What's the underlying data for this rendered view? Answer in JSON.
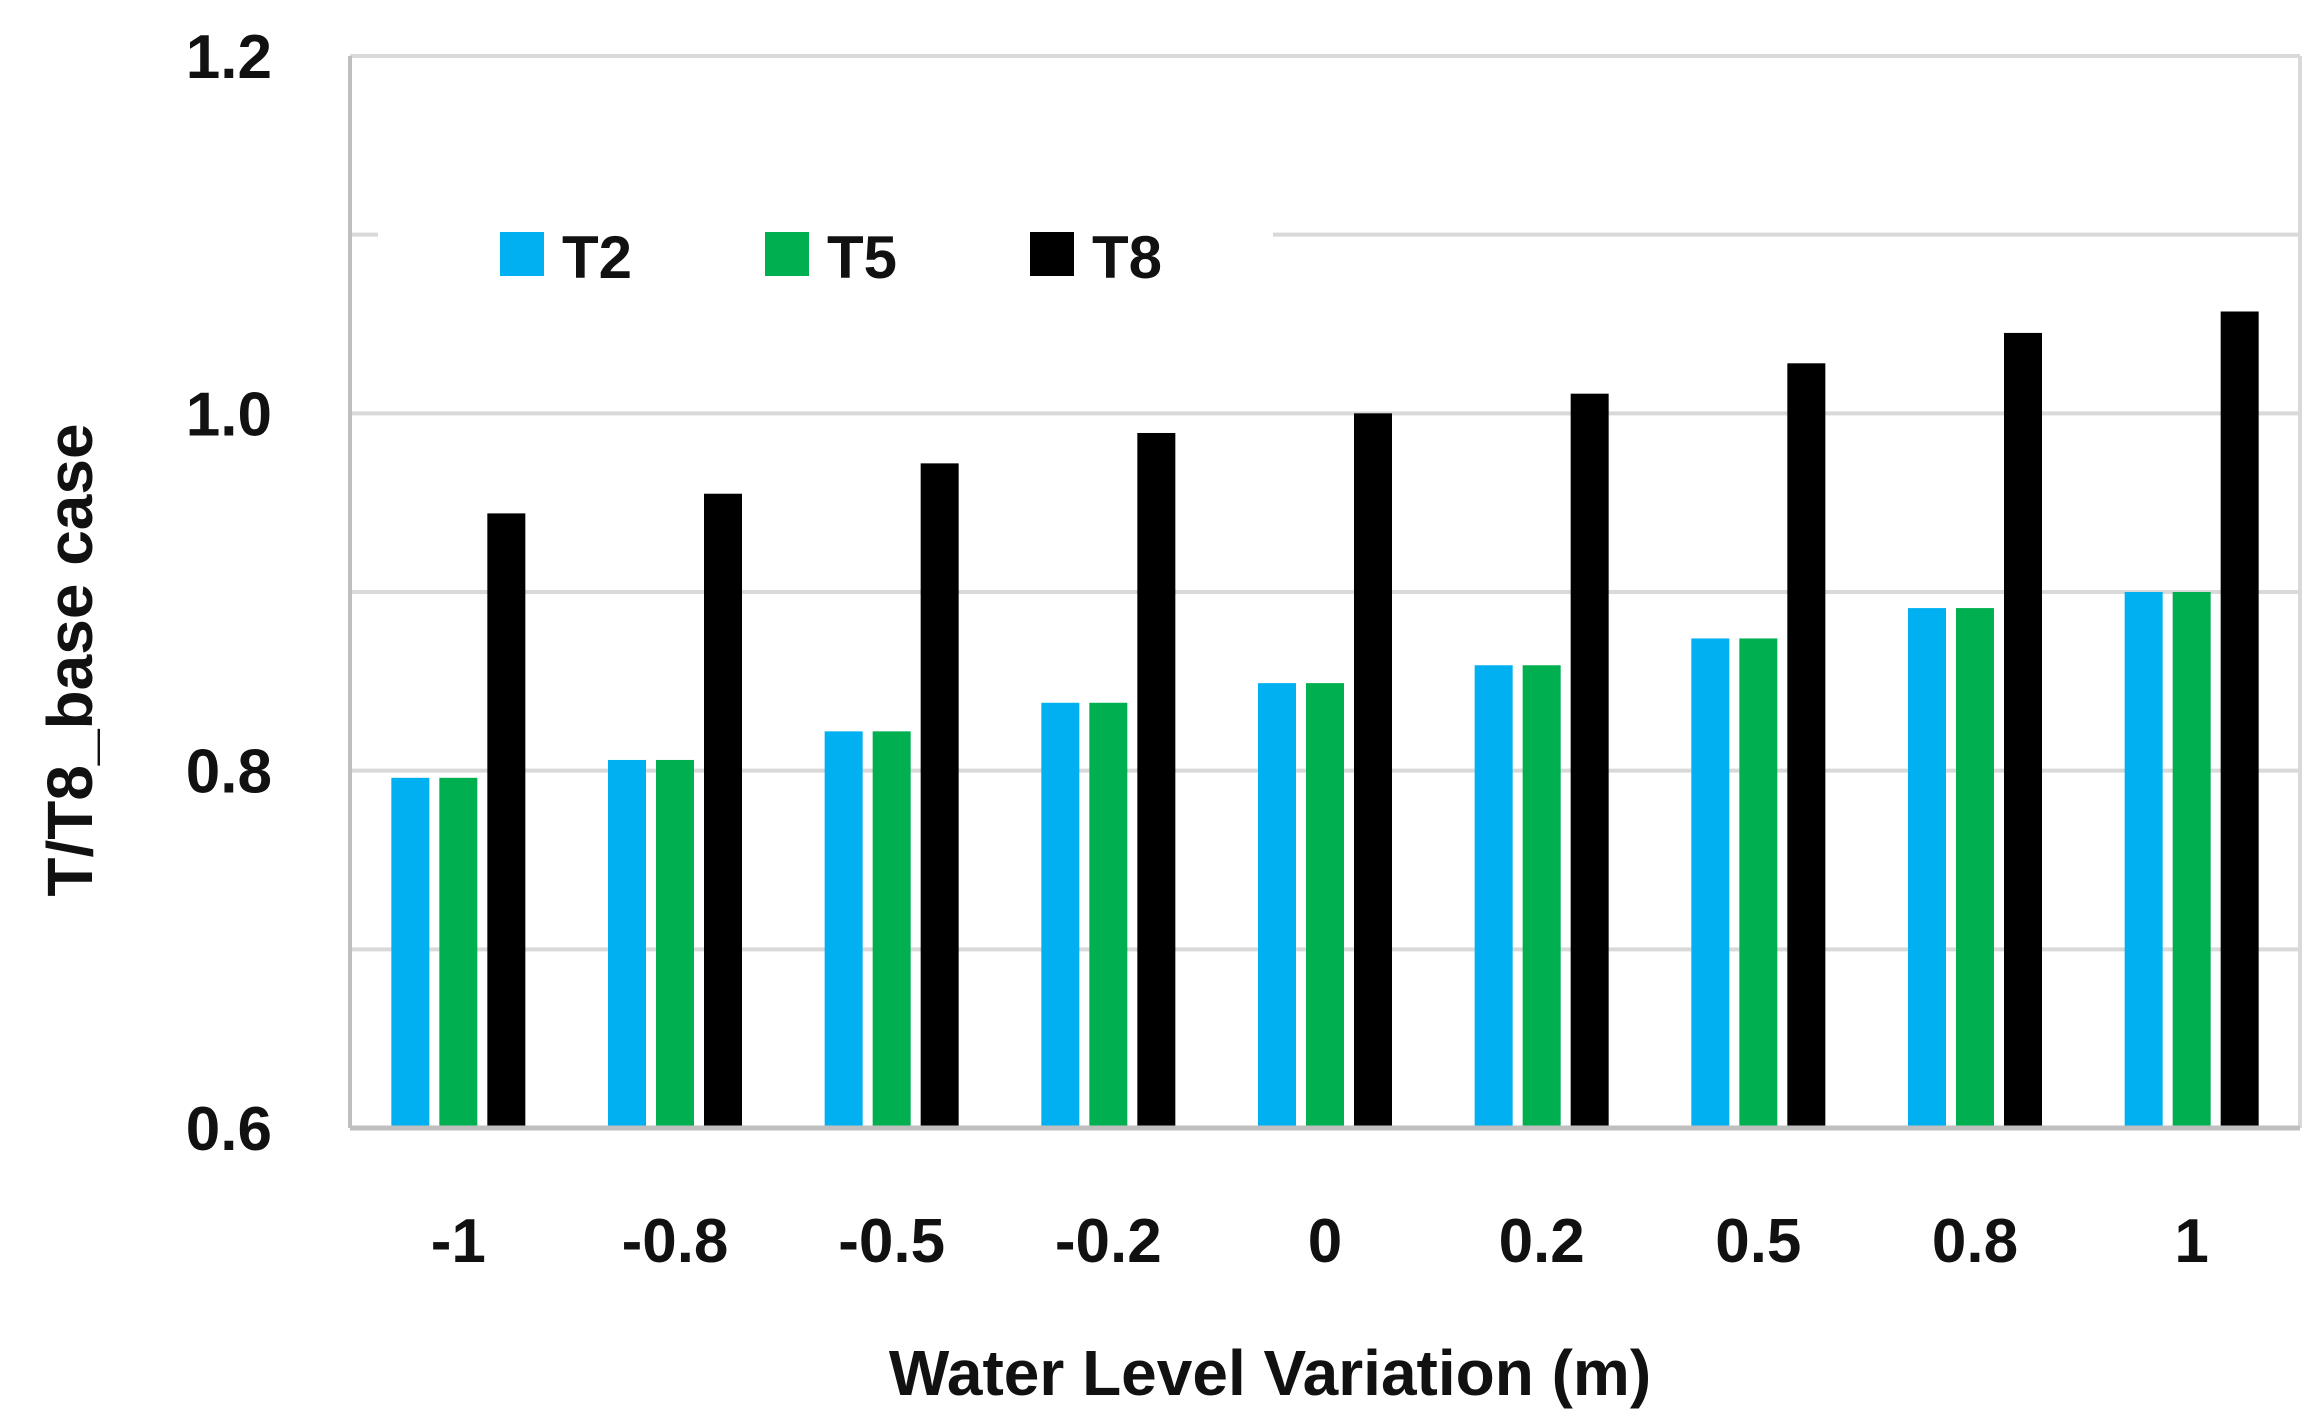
{
  "chart_data": {
    "type": "bar",
    "title": "",
    "xlabel": "Water Level Variation (m)",
    "ylabel": "T/T8_base case",
    "categories": [
      "-1",
      "-0.8",
      "-0.5",
      "-0.2",
      "0",
      "0.2",
      "0.5",
      "0.8",
      "1"
    ],
    "series": [
      {
        "name": "T2",
        "color": "#00B0F0",
        "values": [
          0.796,
          0.806,
          0.822,
          0.838,
          0.849,
          0.859,
          0.874,
          0.891,
          0.9
        ]
      },
      {
        "name": "T5",
        "color": "#00B050",
        "values": [
          0.796,
          0.806,
          0.822,
          0.838,
          0.849,
          0.859,
          0.874,
          0.891,
          0.9
        ]
      },
      {
        "name": "T8",
        "color": "#000000",
        "values": [
          0.944,
          0.955,
          0.972,
          0.989,
          1.0,
          1.011,
          1.028,
          1.045,
          1.057
        ]
      }
    ],
    "ylim": [
      0.6,
      1.2
    ],
    "yticks": [
      0.6,
      0.8,
      1.0,
      1.2
    ],
    "ytick_labels": [
      "0.6",
      "0.8",
      "1.0",
      "1.2"
    ],
    "minor_gridlines": [
      0.7,
      0.9,
      1.1
    ],
    "grid": true,
    "legend_position": "top-left",
    "gridline_color": "#D9D9D9",
    "axis_color": "#BFBFBF"
  }
}
